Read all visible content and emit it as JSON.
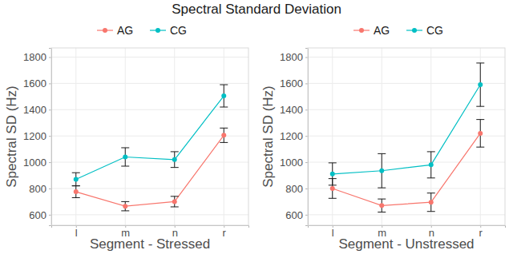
{
  "chart_data": [
    {
      "type": "line",
      "title": "Spectral Standard Deviation",
      "x_label": "Segment - Stressed",
      "y_label": "Spectral SD (Hz)",
      "categories": [
        "l",
        "m",
        "n",
        "r"
      ],
      "series": [
        {
          "name": "AG",
          "color": "#F8766D",
          "values": [
            775,
            665,
            700,
            1205
          ],
          "errors": [
            45,
            35,
            40,
            55
          ]
        },
        {
          "name": "CG",
          "color": "#00BFC4",
          "values": [
            870,
            1040,
            1020,
            1505
          ],
          "errors": [
            50,
            70,
            60,
            85
          ]
        }
      ],
      "ylim": [
        520,
        1870
      ],
      "yticks": [
        600,
        800,
        1000,
        1200,
        1400,
        1600,
        1800
      ],
      "grid": true,
      "legend": "top",
      "marker": "circle"
    },
    {
      "type": "line",
      "x_label": "Segment - Unstressed",
      "y_label": "Spectral SD (Hz)",
      "categories": [
        "l",
        "m",
        "n",
        "r"
      ],
      "series": [
        {
          "name": "AG",
          "color": "#F8766D",
          "values": [
            800,
            670,
            695,
            1220
          ],
          "errors": [
            75,
            50,
            70,
            105
          ]
        },
        {
          "name": "CG",
          "color": "#00BFC4",
          "values": [
            910,
            935,
            980,
            1590
          ],
          "errors": [
            85,
            130,
            100,
            165
          ]
        }
      ],
      "ylim": [
        520,
        1870
      ],
      "yticks": [
        600,
        800,
        1000,
        1200,
        1400,
        1600,
        1800
      ],
      "grid": true,
      "legend": "top",
      "marker": "circle"
    }
  ]
}
